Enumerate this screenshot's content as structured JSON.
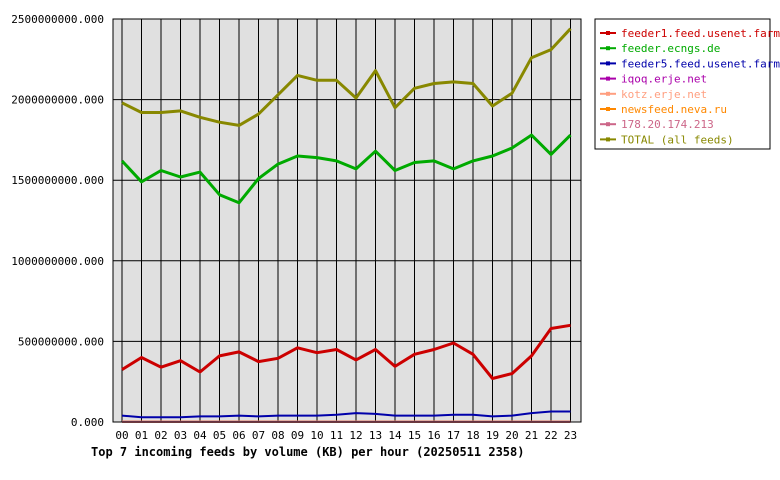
{
  "chart_data": {
    "type": "line",
    "title": "Top 7 incoming feeds by volume (KB) per hour (20250511 2358)",
    "xlabel": "",
    "ylabel": "",
    "ylim": [
      0,
      2500000000
    ],
    "yticks": [
      "0.000",
      "500000000.000",
      "1000000000.000",
      "1500000000.000",
      "2000000000.000",
      "2500000000.000"
    ],
    "grid": true,
    "legend_position": "right",
    "categories": [
      "00",
      "01",
      "02",
      "03",
      "04",
      "05",
      "06",
      "07",
      "08",
      "09",
      "10",
      "11",
      "12",
      "13",
      "14",
      "15",
      "16",
      "17",
      "18",
      "19",
      "20",
      "21",
      "22",
      "23"
    ],
    "series": [
      {
        "name": "feeder1.feed.usenet.farm",
        "color": "#cc0000",
        "values": [
          325000000,
          400000000,
          340000000,
          380000000,
          310000000,
          410000000,
          435000000,
          375000000,
          395000000,
          460000000,
          430000000,
          450000000,
          385000000,
          450000000,
          345000000,
          420000000,
          450000000,
          490000000,
          420000000,
          270000000,
          300000000,
          410000000,
          580000000,
          600000000
        ]
      },
      {
        "name": "feeder.ecngs.de",
        "color": "#00aa00",
        "values": [
          1620000000,
          1490000000,
          1560000000,
          1520000000,
          1550000000,
          1410000000,
          1360000000,
          1510000000,
          1600000000,
          1650000000,
          1640000000,
          1620000000,
          1570000000,
          1680000000,
          1560000000,
          1610000000,
          1620000000,
          1570000000,
          1620000000,
          1650000000,
          1700000000,
          1780000000,
          1660000000,
          1780000000
        ]
      },
      {
        "name": "feeder5.feed.usenet.farm",
        "color": "#0000aa",
        "values": [
          40000000,
          30000000,
          30000000,
          30000000,
          35000000,
          35000000,
          40000000,
          35000000,
          40000000,
          40000000,
          40000000,
          45000000,
          55000000,
          50000000,
          40000000,
          40000000,
          40000000,
          45000000,
          45000000,
          35000000,
          40000000,
          55000000,
          65000000,
          65000000
        ]
      },
      {
        "name": "iqoq.erje.net",
        "color": "#aa00aa",
        "values": [
          2000000,
          2000000,
          2000000,
          2000000,
          2000000,
          2000000,
          2000000,
          2000000,
          2000000,
          2000000,
          2000000,
          2000000,
          2000000,
          2000000,
          2000000,
          2000000,
          2000000,
          2000000,
          2000000,
          2000000,
          2000000,
          2000000,
          2000000,
          2000000
        ]
      },
      {
        "name": "kotz.erje.net",
        "color": "#ff9f80",
        "values": [
          3000000,
          3000000,
          3000000,
          3000000,
          3000000,
          3000000,
          3000000,
          3000000,
          3000000,
          3000000,
          3000000,
          3000000,
          3000000,
          3000000,
          3000000,
          3000000,
          3000000,
          3000000,
          3000000,
          3000000,
          3000000,
          3000000,
          3000000,
          3000000
        ]
      },
      {
        "name": "newsfeed.neva.ru",
        "color": "#ff8800",
        "values": [
          2000000,
          2000000,
          2000000,
          2000000,
          2000000,
          2000000,
          2000000,
          2000000,
          2000000,
          2000000,
          2000000,
          2000000,
          2000000,
          2000000,
          2000000,
          2000000,
          2000000,
          2000000,
          2000000,
          2000000,
          2000000,
          2000000,
          2000000,
          2000000
        ]
      },
      {
        "name": "178.20.174.213",
        "color": "#cc6688",
        "values": [
          1000000,
          1000000,
          1000000,
          1000000,
          1000000,
          1000000,
          1000000,
          1000000,
          1000000,
          1000000,
          1000000,
          1000000,
          1000000,
          1000000,
          1000000,
          1000000,
          1000000,
          1000000,
          1000000,
          1000000,
          1000000,
          1000000,
          1000000,
          1000000
        ]
      },
      {
        "name": "TOTAL (all feeds)",
        "color": "#888800",
        "values": [
          1980000000,
          1920000000,
          1920000000,
          1930000000,
          1890000000,
          1860000000,
          1840000000,
          1910000000,
          2030000000,
          2150000000,
          2120000000,
          2120000000,
          2010000000,
          2180000000,
          1950000000,
          2070000000,
          2100000000,
          2110000000,
          2100000000,
          1960000000,
          2040000000,
          2260000000,
          2310000000,
          2440000000
        ]
      }
    ]
  }
}
